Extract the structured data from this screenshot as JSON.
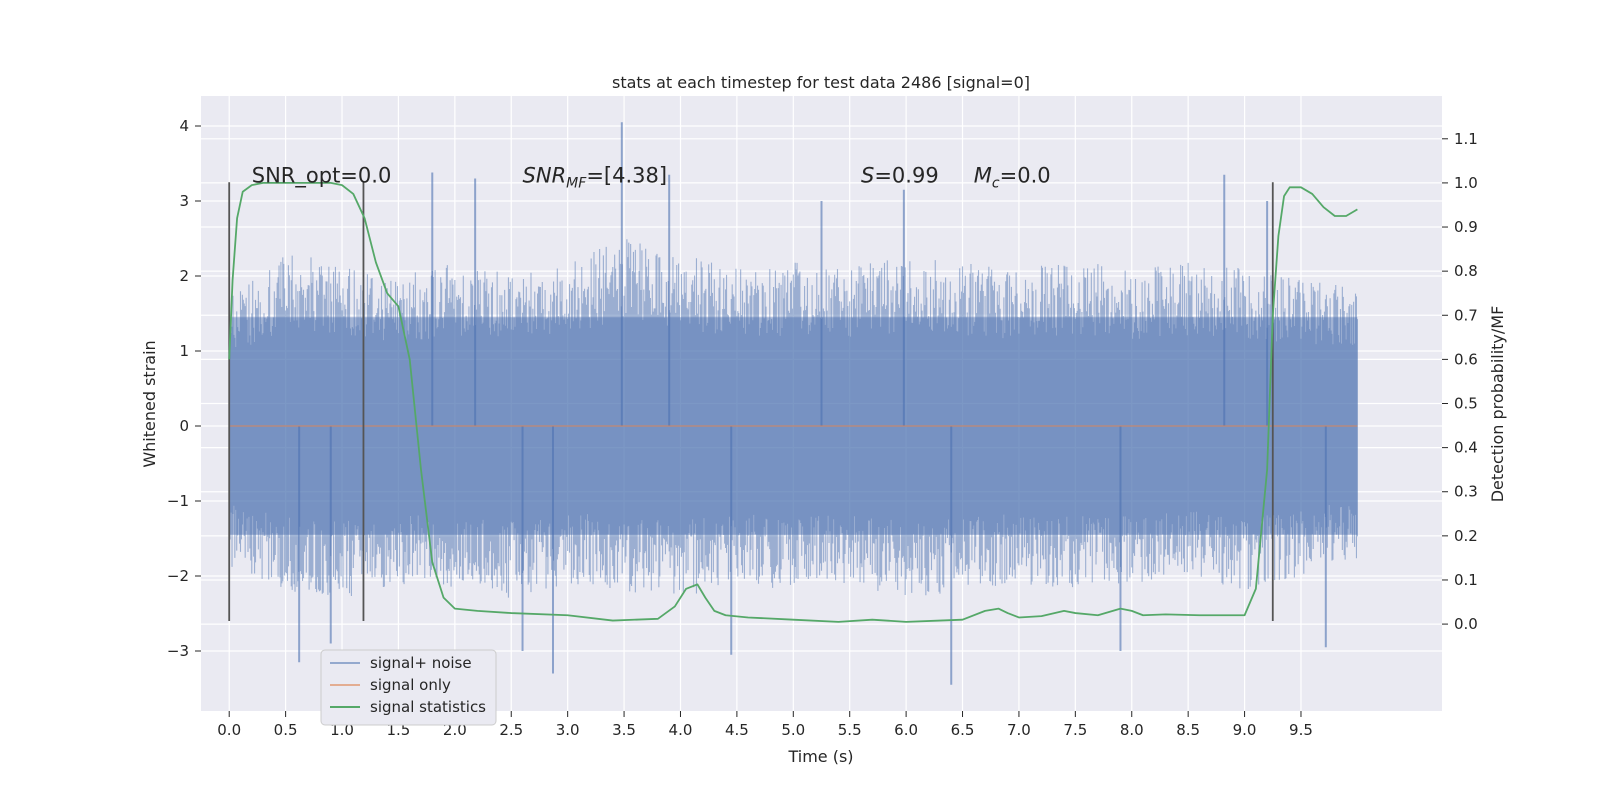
{
  "chart_data": {
    "type": "line",
    "title": "stats at each timestep for test data 2486 [signal=0]",
    "xlabel": "Time (s)",
    "ylabel": "Whitened strain",
    "y2label": "Detection probability/MF",
    "xlim": [
      -0.25,
      10.75
    ],
    "ylim": [
      -3.8,
      4.4
    ],
    "y2lim": [
      -0.197,
      1.197
    ],
    "x_ticks": [
      0.0,
      0.5,
      1.0,
      1.5,
      2.0,
      2.5,
      3.0,
      3.5,
      4.0,
      4.5,
      5.0,
      5.5,
      6.0,
      6.5,
      7.0,
      7.5,
      8.0,
      8.5,
      9.0,
      9.5
    ],
    "x_tick_labels": [
      "0.0",
      "0.5",
      "1.0",
      "1.5",
      "2.0",
      "2.5",
      "3.0",
      "3.5",
      "4.0",
      "4.5",
      "5.0",
      "5.5",
      "6.0",
      "6.5",
      "7.0",
      "7.5",
      "8.0",
      "8.5",
      "9.0",
      "9.5"
    ],
    "y_ticks": [
      -3,
      -2,
      -1,
      0,
      1,
      2,
      3,
      4
    ],
    "y_tick_labels": [
      "−3",
      "−2",
      "−1",
      "0",
      "1",
      "2",
      "3",
      "4"
    ],
    "y2_ticks": [
      0.0,
      0.1,
      0.2,
      0.3,
      0.4,
      0.5,
      0.6,
      0.7,
      0.8,
      0.9,
      1.0,
      1.1
    ],
    "y2_tick_labels": [
      "0.0",
      "0.1",
      "0.2",
      "0.3",
      "0.4",
      "0.5",
      "0.6",
      "0.7",
      "0.8",
      "0.9",
      "1.0",
      "1.1"
    ],
    "grid": true,
    "legend_position": "bottom-left",
    "legend": [
      {
        "name": "signal+ noise",
        "color": "#4c72b0"
      },
      {
        "name": "signal only",
        "color": "#dd8452"
      },
      {
        "name": "signal statistics",
        "color": "#55a868"
      }
    ],
    "annotations": [
      {
        "x": 0.2,
        "y": 3.25,
        "text": "SNR_opt=0.0",
        "italic_parts": []
      },
      {
        "x": 2.6,
        "y": 3.25,
        "prefix": "SNR",
        "sub": "MF",
        "suffix": "=[4.38]"
      },
      {
        "x": 5.6,
        "y": 3.25,
        "italic": "S",
        "suffix": "=0.99"
      },
      {
        "x": 6.6,
        "y": 3.25,
        "italic": "M",
        "sub": "c",
        "suffix": "=0.0"
      }
    ],
    "vertical_lines": {
      "x": [
        0.0,
        1.19,
        9.25
      ],
      "y_range": [
        -2.6,
        3.25
      ],
      "color": "#555555"
    },
    "series": [
      {
        "name": "signal+ noise",
        "axis": "left",
        "color": "#4c72b0",
        "alpha": 0.5,
        "x_range": [
          0.0,
          10.0
        ],
        "envelope": {
          "x": [
            0.0,
            0.5,
            1.0,
            1.5,
            2.0,
            2.5,
            3.0,
            3.5,
            4.0,
            4.5,
            5.0,
            5.5,
            6.0,
            6.5,
            7.0,
            7.5,
            8.0,
            8.5,
            9.0,
            9.5,
            10.0
          ],
          "upper": [
            1.7,
            2.3,
            2.2,
            2.0,
            2.2,
            2.1,
            2.2,
            2.5,
            2.3,
            2.1,
            2.2,
            2.1,
            2.3,
            2.2,
            2.1,
            2.2,
            2.1,
            2.2,
            2.1,
            2.0,
            1.9
          ],
          "lower": [
            -1.9,
            -2.2,
            -2.3,
            -2.1,
            -2.2,
            -2.3,
            -2.1,
            -2.2,
            -2.3,
            -2.1,
            -2.2,
            -2.1,
            -2.3,
            -2.2,
            -2.1,
            -2.2,
            -2.1,
            -2.0,
            -2.2,
            -2.0,
            -1.8
          ]
        },
        "spikes": [
          {
            "x": 0.62,
            "y": -3.15
          },
          {
            "x": 0.9,
            "y": -2.9
          },
          {
            "x": 1.8,
            "y": 3.38
          },
          {
            "x": 2.18,
            "y": 3.3
          },
          {
            "x": 2.6,
            "y": -3.0
          },
          {
            "x": 2.87,
            "y": -3.3
          },
          {
            "x": 3.48,
            "y": 4.05
          },
          {
            "x": 3.9,
            "y": 3.35
          },
          {
            "x": 4.45,
            "y": -3.05
          },
          {
            "x": 5.25,
            "y": 3.0
          },
          {
            "x": 5.98,
            "y": 3.15
          },
          {
            "x": 6.4,
            "y": -3.45
          },
          {
            "x": 8.82,
            "y": 3.35
          },
          {
            "x": 9.2,
            "y": 3.0
          },
          {
            "x": 9.72,
            "y": -2.95
          },
          {
            "x": 7.9,
            "y": -3.0
          }
        ]
      },
      {
        "name": "signal only",
        "axis": "left",
        "color": "#dd8452",
        "x": [
          0.0,
          10.0
        ],
        "y": [
          0.0,
          0.0
        ]
      },
      {
        "name": "signal statistics",
        "axis": "right",
        "color": "#55a868",
        "x": [
          0.0,
          0.03,
          0.07,
          0.12,
          0.2,
          0.3,
          0.4,
          0.5,
          0.6,
          0.7,
          0.8,
          0.9,
          1.0,
          1.1,
          1.2,
          1.3,
          1.4,
          1.5,
          1.6,
          1.7,
          1.8,
          1.9,
          2.0,
          2.2,
          2.5,
          3.0,
          3.4,
          3.8,
          3.95,
          4.05,
          4.15,
          4.22,
          4.3,
          4.4,
          4.6,
          5.0,
          5.4,
          5.7,
          6.0,
          6.3,
          6.5,
          6.7,
          6.82,
          6.9,
          7.0,
          7.2,
          7.4,
          7.5,
          7.7,
          7.9,
          8.0,
          8.1,
          8.3,
          8.6,
          9.0,
          9.1,
          9.2,
          9.25,
          9.3,
          9.35,
          9.4,
          9.5,
          9.6,
          9.7,
          9.8,
          9.9,
          10.0
        ],
        "y": [
          0.6,
          0.78,
          0.92,
          0.98,
          0.995,
          1.0,
          1.0,
          1.0,
          1.0,
          1.0,
          1.0,
          1.0,
          0.995,
          0.975,
          0.92,
          0.82,
          0.75,
          0.72,
          0.6,
          0.35,
          0.14,
          0.06,
          0.035,
          0.03,
          0.025,
          0.02,
          0.008,
          0.012,
          0.04,
          0.08,
          0.09,
          0.06,
          0.03,
          0.02,
          0.015,
          0.01,
          0.005,
          0.01,
          0.005,
          0.008,
          0.01,
          0.03,
          0.035,
          0.025,
          0.015,
          0.018,
          0.03,
          0.025,
          0.02,
          0.035,
          0.03,
          0.02,
          0.022,
          0.02,
          0.02,
          0.08,
          0.35,
          0.7,
          0.88,
          0.97,
          0.99,
          0.99,
          0.975,
          0.945,
          0.925,
          0.925,
          0.94
        ]
      }
    ]
  }
}
